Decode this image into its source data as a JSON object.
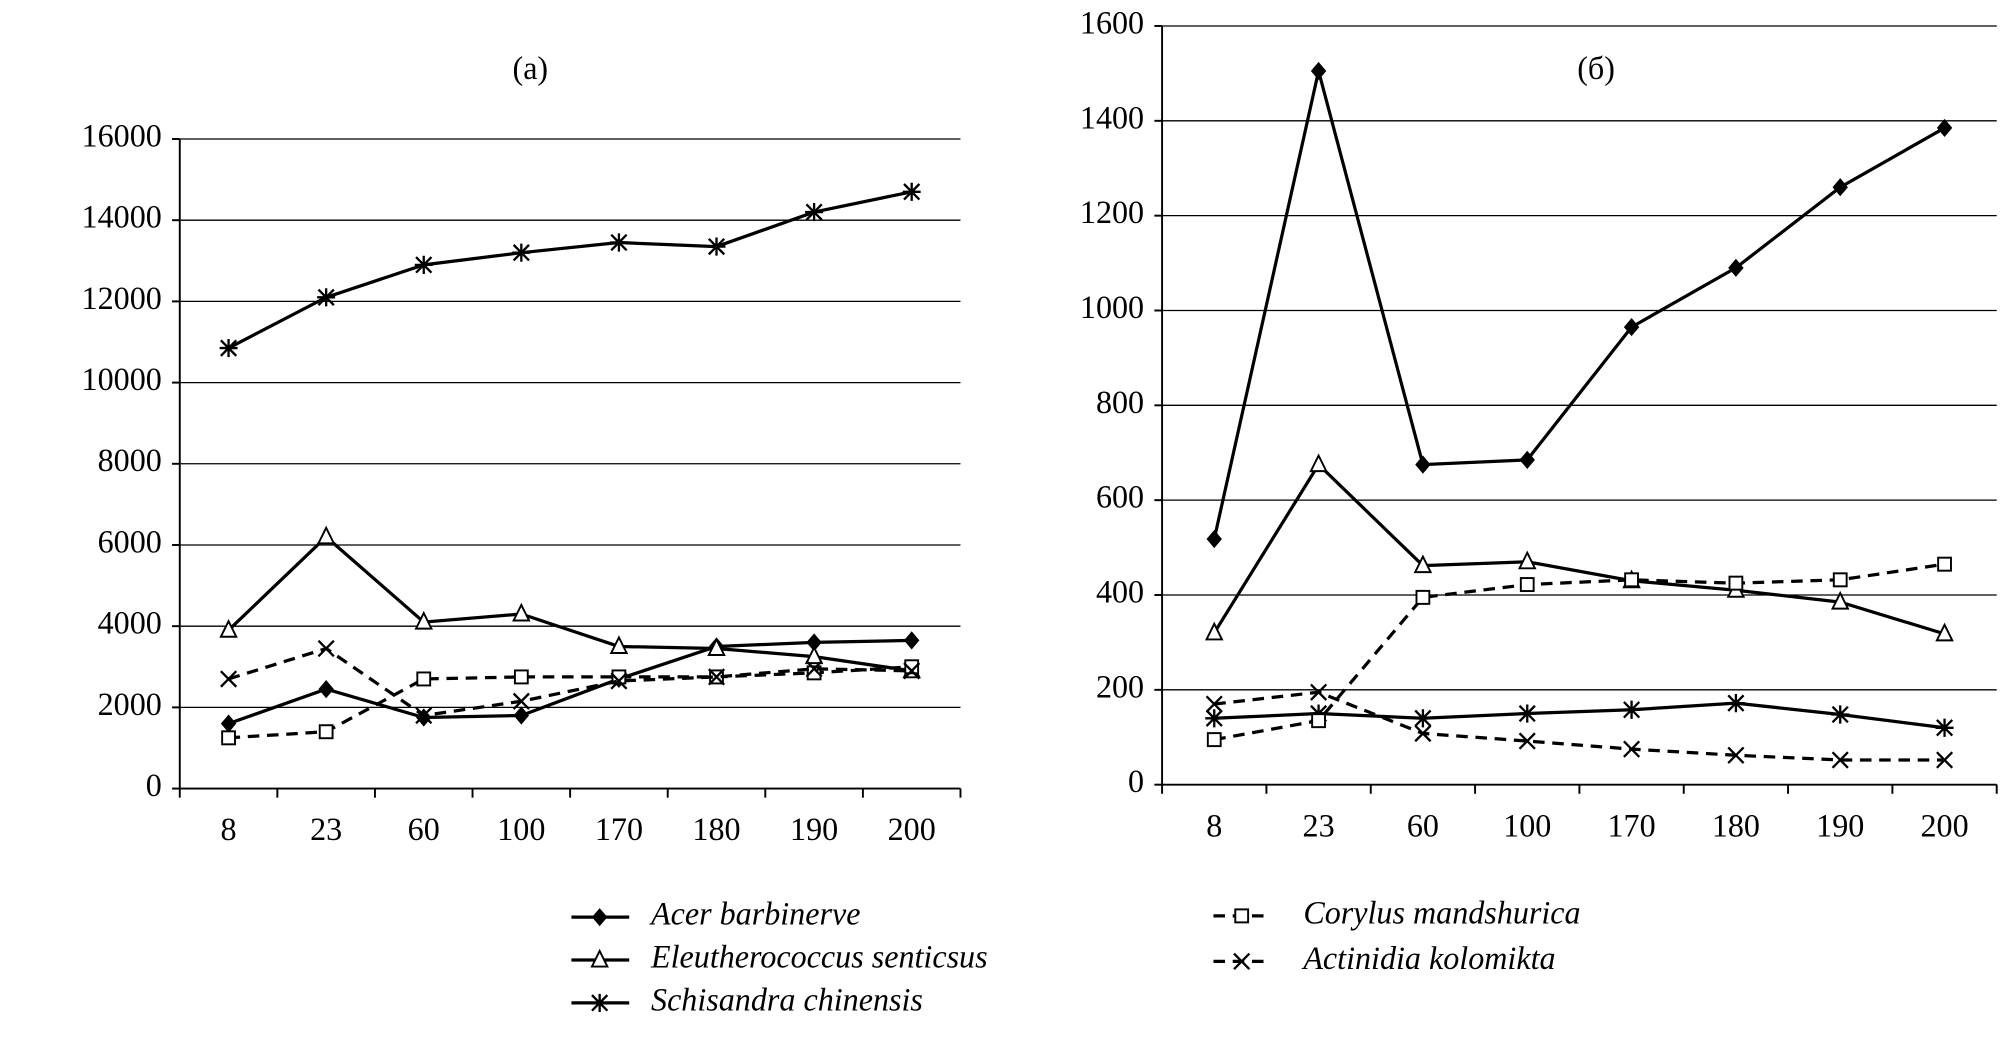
{
  "chart_data": [
    {
      "type": "line",
      "title": "(a)",
      "categories": [
        "8",
        "23",
        "60",
        "100",
        "170",
        "180",
        "190",
        "200"
      ],
      "ylim": [
        0,
        16000
      ],
      "yticks": [
        0,
        2000,
        4000,
        6000,
        8000,
        10000,
        12000,
        14000,
        16000
      ],
      "grid": true,
      "series": [
        {
          "name": "Acer barbinerve",
          "color": "#000000",
          "marker": "diamond",
          "dashed": false,
          "values": [
            1600,
            2450,
            1750,
            1800,
            2700,
            3500,
            3600,
            3650
          ]
        },
        {
          "name": "Eleutherococcus senticsus",
          "color": "#000000",
          "marker": "triangle",
          "dashed": false,
          "values": [
            3900,
            6200,
            4100,
            4300,
            3500,
            3450,
            3250,
            2900
          ]
        },
        {
          "name": "Schisandra chinensis",
          "color": "#000000",
          "marker": "asterisk",
          "dashed": false,
          "values": [
            10850,
            12100,
            12900,
            13200,
            13450,
            13350,
            14200,
            14700
          ]
        },
        {
          "name": "Corylus mandshurica",
          "color": "#000000",
          "marker": "square",
          "dashed": true,
          "values": [
            1250,
            1400,
            2700,
            2750,
            2750,
            2750,
            2850,
            3000
          ]
        },
        {
          "name": "Actinidia kolomikta",
          "color": "#000000",
          "marker": "cross",
          "dashed": true,
          "values": [
            2700,
            3450,
            1800,
            2150,
            2650,
            2750,
            2950,
            2900
          ]
        }
      ]
    },
    {
      "type": "line",
      "title": "(б)",
      "categories": [
        "8",
        "23",
        "60",
        "100",
        "170",
        "180",
        "190",
        "200"
      ],
      "ylim": [
        0,
        1600
      ],
      "yticks": [
        0,
        200,
        400,
        600,
        800,
        1000,
        1200,
        1400,
        1600
      ],
      "grid": true,
      "series": [
        {
          "name": "Acer barbinerve",
          "color": "#000000",
          "marker": "diamond",
          "dashed": false,
          "values": [
            518,
            1505,
            675,
            685,
            965,
            1090,
            1260,
            1385
          ]
        },
        {
          "name": "Eleutherococcus senticsus",
          "color": "#000000",
          "marker": "triangle",
          "dashed": false,
          "values": [
            320,
            675,
            462,
            470,
            430,
            410,
            385,
            318
          ]
        },
        {
          "name": "Schisandra chinensis",
          "color": "#000000",
          "marker": "asterisk",
          "dashed": false,
          "values": [
            140,
            150,
            140,
            150,
            158,
            172,
            148,
            120
          ]
        },
        {
          "name": "Corylus mandshurica",
          "color": "#000000",
          "marker": "square",
          "dashed": true,
          "values": [
            95,
            135,
            395,
            422,
            432,
            425,
            432,
            465
          ]
        },
        {
          "name": "Actinidia kolomikta",
          "color": "#000000",
          "marker": "cross",
          "dashed": true,
          "values": [
            170,
            195,
            108,
            92,
            75,
            62,
            52,
            52
          ]
        }
      ]
    }
  ]
}
